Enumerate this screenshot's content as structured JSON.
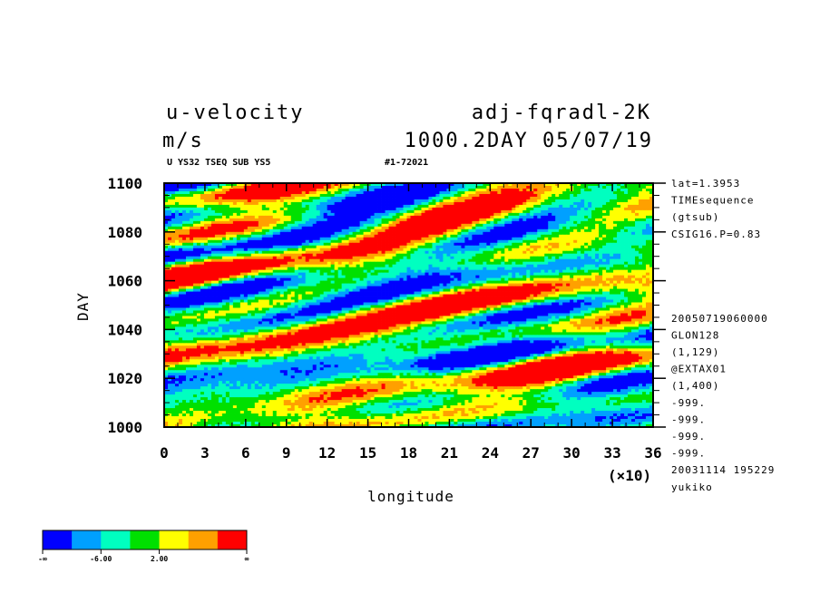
{
  "header": {
    "variable": "u-velocity",
    "units": "m/s",
    "experiment": "adj-fqradl-2K",
    "time_info": "1000.2DAY 05/07/19",
    "sub_left": "U YS32 TSEQ SUB YS5",
    "sub_right": "#1-72021"
  },
  "info_lines": [
    "lat=1.3953",
    "TIMEsequence",
    "(gtsub)",
    "CSIG16.P=0.83",
    "",
    "",
    "",
    "",
    "20050719060000",
    "GLON128",
    "(1,129)",
    "@EXTAX01",
    "(1,400)",
    "-999.",
    "-999.",
    "-999.",
    "-999.",
    "20031114 195229",
    "yukiko"
  ],
  "chart_data": {
    "type": "heatmap",
    "title": "u-velocity",
    "xlabel": "longitude",
    "ylabel": "DAY",
    "x_multiplier": "(×10)",
    "xlim": [
      0,
      36
    ],
    "ylim": [
      1000,
      1100
    ],
    "x_ticks": [
      "0",
      "3",
      "6",
      "9",
      "12",
      "15",
      "18",
      "21",
      "24",
      "27",
      "30",
      "33",
      "36"
    ],
    "y_ticks": [
      "1000",
      "1020",
      "1040",
      "1060",
      "1080",
      "1100"
    ],
    "x_tick_values": [
      0,
      3,
      6,
      9,
      12,
      15,
      18,
      21,
      24,
      27,
      30,
      33,
      36
    ],
    "y_tick_values": [
      1000,
      1020,
      1040,
      1060,
      1080,
      1100
    ],
    "colorbar": {
      "colors": [
        "#0000ff",
        "#00a0ff",
        "#00ffc0",
        "#00e000",
        "#ffff00",
        "#ffa000",
        "#ff0000"
      ],
      "labels": [
        "-∞",
        "-6.00",
        "2.00",
        "∞"
      ]
    }
  }
}
